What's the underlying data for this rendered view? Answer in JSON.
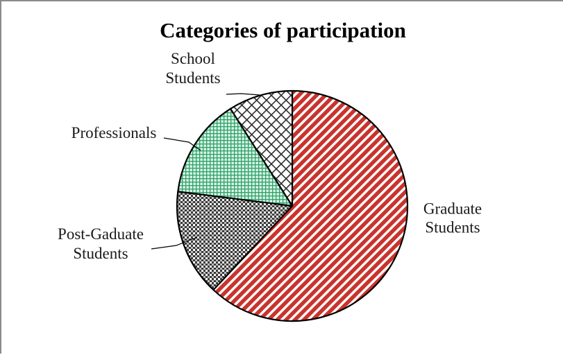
{
  "chart_data": {
    "type": "pie",
    "title": "Categories of participation",
    "start_angle_deg": 0,
    "direction": "clockwise",
    "slices": [
      {
        "label": "Graduate Students",
        "label_lines": [
          "Graduate",
          "Students"
        ],
        "value": 62,
        "color": "#c8342d",
        "pattern": "diagonal-stripes"
      },
      {
        "label": "Post-Gaduate Students",
        "label_lines": [
          "Post-Gaduate",
          "Students"
        ],
        "value": 15,
        "color": "#3a3a3a",
        "pattern": "checker"
      },
      {
        "label": "Professionals",
        "label_lines": [
          "Professionals"
        ],
        "value": 14,
        "color": "#2ea06a",
        "pattern": "grid"
      },
      {
        "label": "School Students",
        "label_lines": [
          "School",
          "Students"
        ],
        "value": 9,
        "color": "#2b2b2b",
        "pattern": "diamond-lattice"
      }
    ]
  }
}
